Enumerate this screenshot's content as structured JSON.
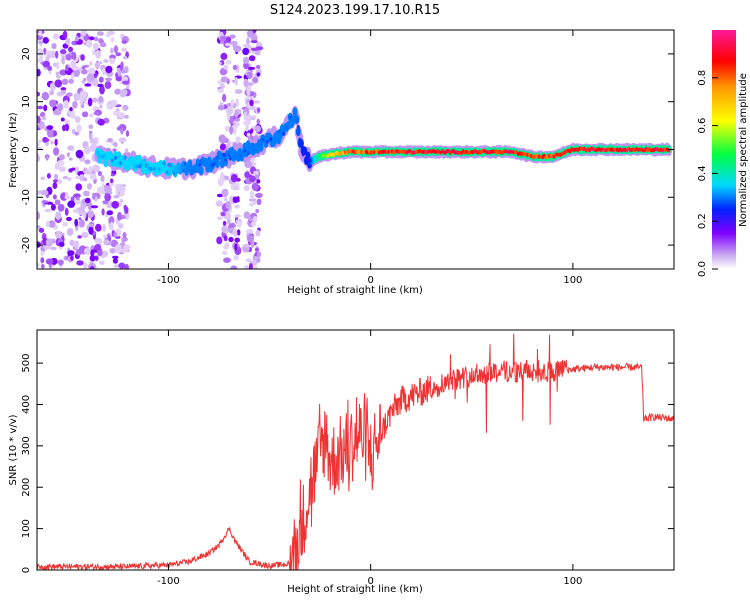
{
  "title": "S124.2023.199.17.10.R15",
  "top_panel": {
    "ylabel": "Frequency (Hz)",
    "xlabel": "Height of straight line (km)",
    "colorbar_label": "Normalized spectral amplitude"
  },
  "bottom_panel": {
    "ylabel": "SNR (10 * v/v)",
    "xlabel": "Height of straight line (km)"
  },
  "colors": {
    "snr_line": "#ee3333",
    "bg": "#ffffff"
  },
  "chart_data": [
    {
      "type": "heatmap",
      "title": "S124.2023.199.17.10.R15",
      "xlabel": "Height of straight line (km)",
      "ylabel": "Frequency (Hz)",
      "xlim": [
        -165,
        150
      ],
      "ylim": [
        -25,
        25
      ],
      "xticks": [
        -100,
        0,
        100
      ],
      "yticks": [
        -20,
        -10,
        0,
        10,
        20
      ],
      "colorbar": {
        "label": "Normalized spectral amplitude",
        "range": [
          0,
          1
        ],
        "ticks": [
          0.0,
          0.2,
          0.4,
          0.6,
          0.8
        ]
      },
      "ridge": {
        "x": [
          -135,
          -120,
          -110,
          -100,
          -90,
          -80,
          -70,
          -60,
          -50,
          -45,
          -40,
          -37,
          -34,
          -30,
          -25,
          -20,
          -10,
          0,
          20,
          50,
          70,
          80,
          90,
          100,
          120,
          135,
          148
        ],
        "freq_hz": [
          -1.5,
          -2.5,
          -3.5,
          -4,
          -4,
          -3,
          -1.5,
          0,
          2,
          3,
          6,
          7,
          0,
          -2.5,
          -1.5,
          -1,
          -0.5,
          -0.5,
          -0.5,
          -0.5,
          -0.5,
          -1.5,
          -1.5,
          0,
          0,
          0,
          0
        ],
        "amplitude": [
          0.35,
          0.35,
          0.35,
          0.35,
          0.3,
          0.3,
          0.3,
          0.3,
          0.3,
          0.3,
          0.3,
          0.3,
          0.25,
          0.25,
          0.5,
          0.7,
          0.85,
          0.9,
          0.95,
          0.95,
          0.95,
          0.9,
          0.9,
          0.95,
          0.95,
          0.95,
          0.95
        ]
      },
      "noise_bands_x": [
        [
          -165,
          -120
        ],
        [
          -75,
          -65
        ],
        [
          -62,
          -55
        ]
      ]
    },
    {
      "type": "line",
      "title": "",
      "xlabel": "Height of straight line (km)",
      "ylabel": "SNR (10 * v/v)",
      "xlim": [
        -165,
        150
      ],
      "ylim": [
        0,
        580
      ],
      "xticks": [
        -100,
        0,
        100
      ],
      "yticks": [
        0,
        100,
        200,
        300,
        400,
        500
      ],
      "series": [
        {
          "name": "SNR",
          "x": [
            -165,
            -140,
            -120,
            -100,
            -90,
            -80,
            -75,
            -70,
            -67,
            -60,
            -50,
            -40,
            -35,
            -30,
            -25,
            -22,
            -20,
            -10,
            -5,
            0,
            10,
            15,
            20,
            30,
            40,
            50,
            60,
            70,
            80,
            90,
            100,
            110,
            120,
            130,
            134,
            135,
            140,
            150
          ],
          "y": [
            8,
            8,
            8,
            12,
            20,
            40,
            60,
            100,
            70,
            20,
            10,
            15,
            80,
            200,
            280,
            330,
            260,
            300,
            330,
            280,
            380,
            410,
            420,
            440,
            460,
            470,
            480,
            480,
            480,
            480,
            485,
            490,
            490,
            490,
            490,
            365,
            370,
            365
          ]
        }
      ]
    }
  ]
}
